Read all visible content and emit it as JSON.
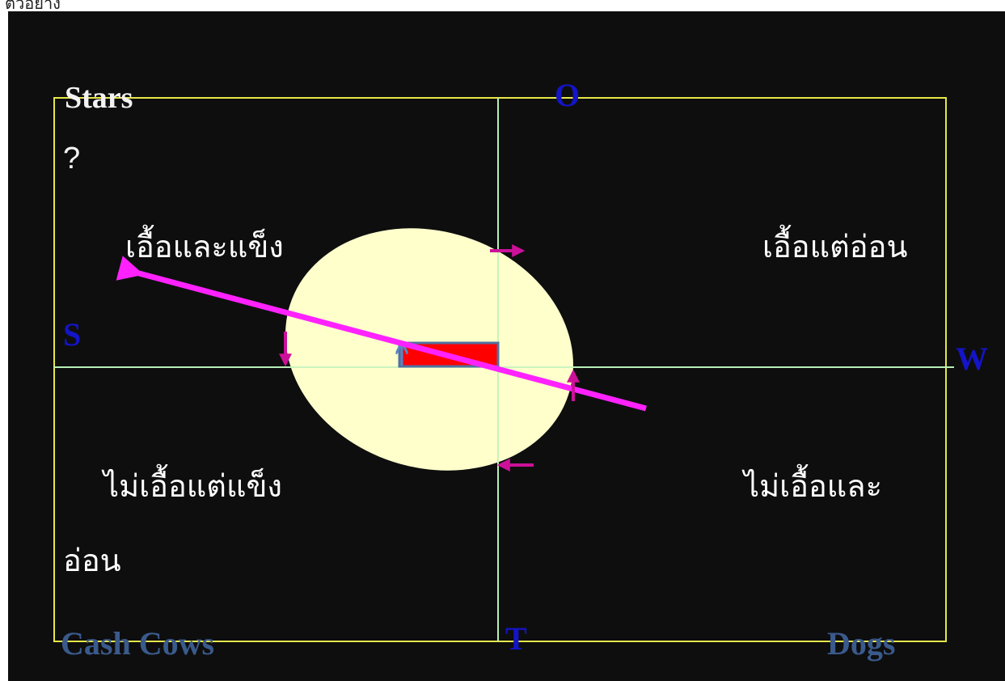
{
  "caption": "ตัวอย่าง",
  "quadrants": {
    "top_left_title": "Stars",
    "top_left_mark": "?",
    "top_left_label": "เอื้อและแข็ง",
    "top_right_label": "เอื้อแต่อ่อน",
    "bottom_left_label": "ไม่เอื้อแต่แข็ง",
    "bottom_right_label": "ไม่เอื้อและ",
    "bottom_right_label_cont": "อ่อน",
    "bottom_left_title": "Cash Cows",
    "bottom_right_title": "Dogs"
  },
  "axes": {
    "top": "O",
    "left": "S",
    "right": "W",
    "bottom": "T"
  },
  "colors": {
    "background": "#0e0e0e",
    "frame": "#e6e64a",
    "center_lines": "#b8f0b8",
    "ellipse": "#ffffcc",
    "bar": "#ff0000",
    "bar_outline": "#5070a0",
    "main_arrow": "#ff22ff",
    "small_arrows": "#cc1199",
    "axis_letters": "#1414c8",
    "corner_titles": "#3a5a8c"
  }
}
